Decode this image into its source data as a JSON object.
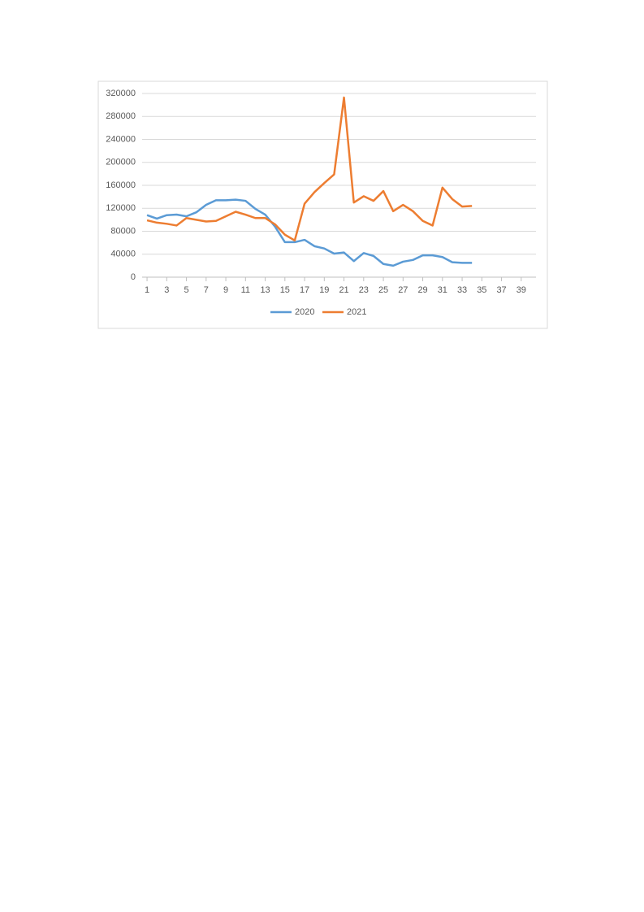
{
  "chart_data": {
    "type": "line",
    "x": [
      1,
      2,
      3,
      4,
      5,
      6,
      7,
      8,
      9,
      10,
      11,
      12,
      13,
      14,
      15,
      16,
      17,
      18,
      19,
      20,
      21,
      22,
      23,
      24,
      25,
      26,
      27,
      28,
      29,
      30,
      31,
      32,
      33,
      34
    ],
    "series": [
      {
        "name": "2020",
        "color": "#5b9bd5",
        "values": [
          108000,
          102000,
          108000,
          109000,
          106000,
          113000,
          126000,
          134000,
          134000,
          135000,
          133000,
          119000,
          109000,
          88000,
          61000,
          61000,
          65000,
          54000,
          50000,
          41000,
          43000,
          28000,
          42000,
          37000,
          23000,
          20000,
          27000,
          30000,
          38000,
          38000,
          35000,
          26000,
          25000,
          25000
        ]
      },
      {
        "name": "2021",
        "color": "#ed7d31",
        "values": [
          99000,
          95000,
          93000,
          90000,
          103000,
          100000,
          97000,
          98000,
          106000,
          114000,
          109000,
          103000,
          103000,
          92000,
          74000,
          64000,
          128000,
          148000,
          164000,
          179000,
          313000,
          130000,
          141000,
          133000,
          150000,
          115000,
          126000,
          115000,
          98000,
          90000,
          156000,
          136000,
          123000,
          124000
        ]
      }
    ],
    "xlim": [
      0.5,
      40.5
    ],
    "xticks": [
      1,
      3,
      5,
      7,
      9,
      11,
      13,
      15,
      17,
      19,
      21,
      23,
      25,
      27,
      29,
      31,
      33,
      35,
      37,
      39
    ],
    "ylim": [
      0,
      320000
    ],
    "yticks": [
      0,
      40000,
      80000,
      120000,
      160000,
      200000,
      240000,
      280000,
      320000
    ],
    "grid": true,
    "legend": "bottom"
  }
}
